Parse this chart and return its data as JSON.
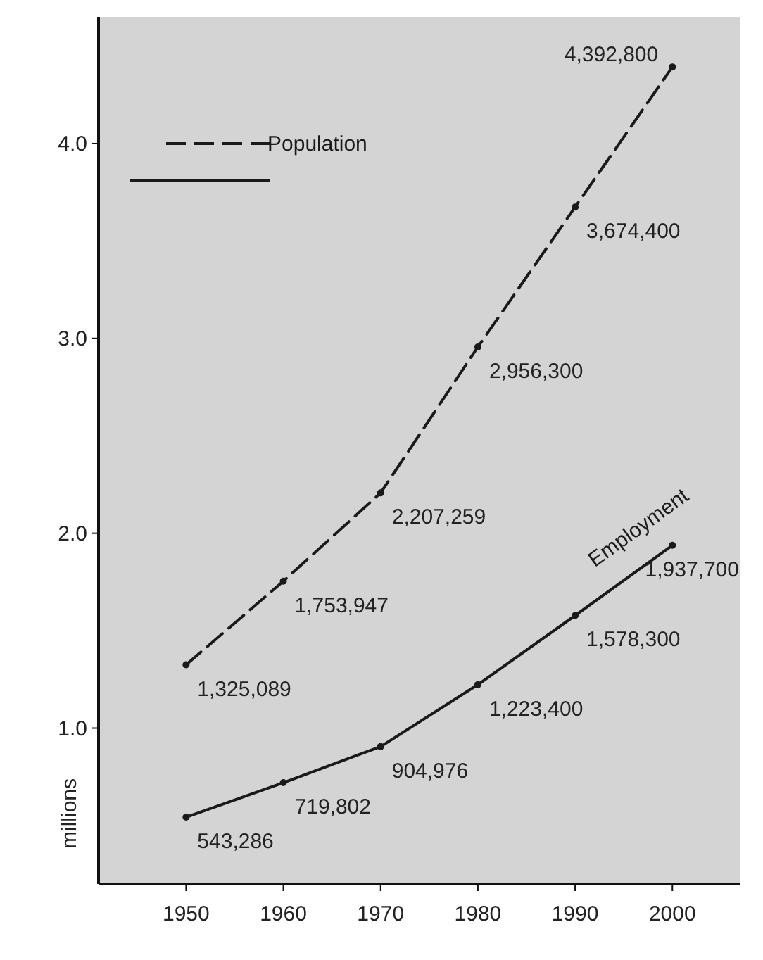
{
  "chart_data": {
    "type": "line",
    "ylabel": "millions",
    "x": [
      1950,
      1960,
      1970,
      1980,
      1990,
      2000
    ],
    "xlim": [
      1941,
      2007
    ],
    "xticks": [
      1950,
      1960,
      1970,
      1980,
      1990,
      2000
    ],
    "ylim": [
      0.2,
      4.65
    ],
    "yticks": [
      {
        "value": 1,
        "label": "1.0"
      },
      {
        "value": 2,
        "label": "2.0"
      },
      {
        "value": 3,
        "label": "3.0"
      },
      {
        "value": 4,
        "label": "4.0"
      }
    ],
    "grid": false,
    "legend": "top left",
    "marker": "circle",
    "series": [
      {
        "name": "Population",
        "color": "#1a1a1a",
        "line_style": "dashed",
        "values": [
          1.325,
          1.754,
          2.207,
          2.956,
          3.674,
          4.393
        ]
      },
      {
        "name": "Employment",
        "color": "#1a1a1a",
        "line_style": "solid",
        "values": [
          0.543,
          0.72,
          0.905,
          1.223,
          1.578,
          1.938
        ]
      }
    ],
    "annotations": [
      {
        "text": "1,325,089",
        "x": 1950,
        "y": 1.325
      },
      {
        "text": "1,753,947",
        "x": 1960,
        "y": 1.754
      },
      {
        "text": "2,207,259",
        "x": 1970,
        "y": 2.207
      },
      {
        "text": "2,956,300",
        "x": 1980,
        "y": 2.956
      },
      {
        "text": "3,674,400",
        "x": 1990,
        "y": 3.674
      },
      {
        "text": "4,392,800",
        "x": 2000,
        "y": 4.393
      },
      {
        "text": "543,286",
        "x": 1950,
        "y": 0.543
      },
      {
        "text": "719,802",
        "x": 1960,
        "y": 0.72
      },
      {
        "text": "904,976",
        "x": 1970,
        "y": 0.905
      },
      {
        "text": "1,223,400",
        "x": 1980,
        "y": 1.223
      },
      {
        "text": "1,578,300",
        "x": 1990,
        "y": 1.578
      },
      {
        "text": "1,937,700",
        "x": 2000,
        "y": 1.938
      }
    ]
  }
}
